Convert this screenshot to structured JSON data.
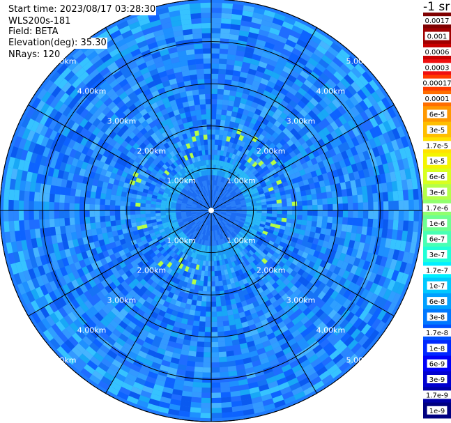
{
  "header": {
    "start_time": "Start time: 2023/08/17 03:28:30",
    "instrument": "WLS200s-181",
    "field": "Field: BETA",
    "elevation": "Elevation(deg): 35.30",
    "nrays": "NRays: 120"
  },
  "colorbar": {
    "unit": "-1 sr",
    "labels": [
      "0.0017",
      "0.001",
      "0.0006",
      "0.0003",
      "0.00017",
      "0.0001",
      "6e-5",
      "3e-5",
      "1.7e-5",
      "1e-5",
      "6e-6",
      "3e-6",
      "1.7e-6",
      "1e-6",
      "6e-7",
      "3e-7",
      "1.7e-7",
      "1e-7",
      "6e-8",
      "3e-8",
      "1.7e-8",
      "1e-8",
      "6e-9",
      "3e-9",
      "1.7e-9",
      "1e-9"
    ],
    "colors": [
      "#800000",
      "#a00000",
      "#c80000",
      "#f01010",
      "#ff3c00",
      "#ff6e00",
      "#ff9800",
      "#ffbe00",
      "#ffe200",
      "#f4f400",
      "#d8ff20",
      "#b4ff48",
      "#90ff6e",
      "#6eff90",
      "#48ffb4",
      "#20ffd8",
      "#00f0ff",
      "#00c8ff",
      "#00a0ff",
      "#0078ff",
      "#0050ff",
      "#0028ff",
      "#0000f8",
      "#0000d0",
      "#0000a8",
      "#000080"
    ]
  },
  "chart_data": {
    "type": "heatmap",
    "projection": "polar (PPI)",
    "range_rings_km": [
      1,
      2,
      3,
      4,
      5
    ],
    "range_labels": [
      "1.00km",
      "2.00km",
      "3.00km",
      "4.00km",
      "5.00km"
    ],
    "spokes_deg": [
      0,
      30,
      60,
      90,
      120,
      150,
      180,
      210,
      240,
      270,
      300,
      330
    ],
    "max_range_km": 5.0,
    "nrays": 120,
    "field": "BETA",
    "typical_value_near": "6e-8",
    "typical_value_far": "3e-8",
    "center_value": "3e-8",
    "color_scale": "log"
  }
}
